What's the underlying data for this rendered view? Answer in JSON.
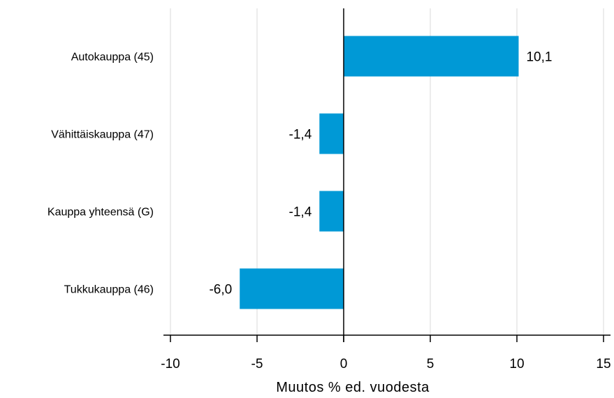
{
  "chart_data": {
    "type": "bar",
    "orientation": "horizontal",
    "categories": [
      "Autokauppa (45)",
      "Vähittäiskauppa (47)",
      "Kauppa yhteensä (G)",
      "Tukkukauppa (46)"
    ],
    "values": [
      10.1,
      -1.4,
      -1.4,
      -6.0
    ],
    "value_labels": [
      "10,1",
      "-1,4",
      "-1,4",
      "-6,0"
    ],
    "title": "",
    "xlabel": "Muutos % ed. vuodesta",
    "ylabel": "",
    "xlim": [
      -10,
      15
    ],
    "xticks": [
      -10,
      -5,
      0,
      5,
      10,
      15
    ],
    "xtick_labels": [
      "-10",
      "-5",
      "0",
      "5",
      "10",
      "15"
    ],
    "grid": "vertical",
    "bar_color": "#0099d6",
    "grid_color": "#d9d9d9",
    "axis_color": "#000000"
  }
}
